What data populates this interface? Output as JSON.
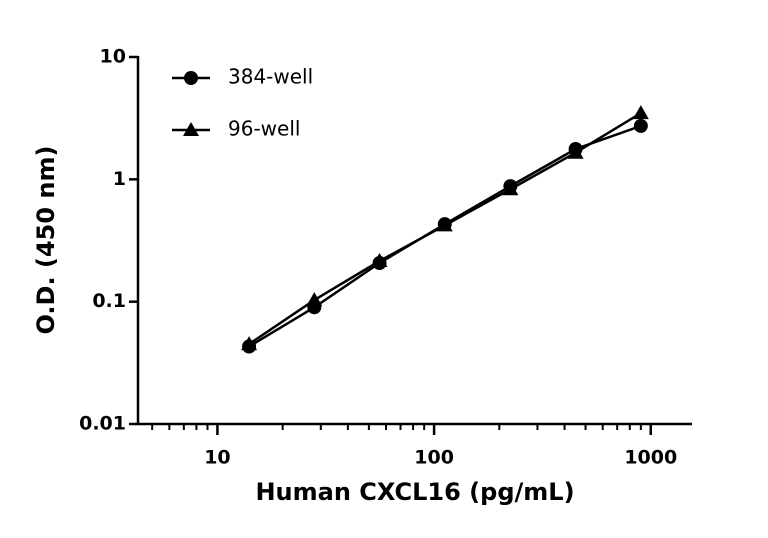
{
  "chart_data": {
    "type": "line",
    "x_label": "Human CXCL16 (pg/mL)",
    "y_label": "O.D. (450 nm)",
    "x": [
      14,
      28,
      56,
      112,
      225,
      450,
      900
    ],
    "series": [
      {
        "name": "384-well",
        "color": "#000000",
        "marker": "circle",
        "values": [
          0.043,
          0.09,
          0.207,
          0.43,
          0.88,
          1.77,
          2.73
        ]
      },
      {
        "name": "96-well",
        "color": "#000000",
        "marker": "triangle",
        "values": [
          0.045,
          0.103,
          0.215,
          0.42,
          0.83,
          1.65,
          3.48
        ]
      }
    ],
    "xlim": [
      4.3,
      1550
    ],
    "ylim": [
      0.01,
      10
    ],
    "xticks": [
      10,
      100,
      1000
    ],
    "yticks": [
      0.01,
      0.1,
      1,
      10
    ],
    "xscale": "log",
    "yscale": "log",
    "legend": "upper left"
  }
}
